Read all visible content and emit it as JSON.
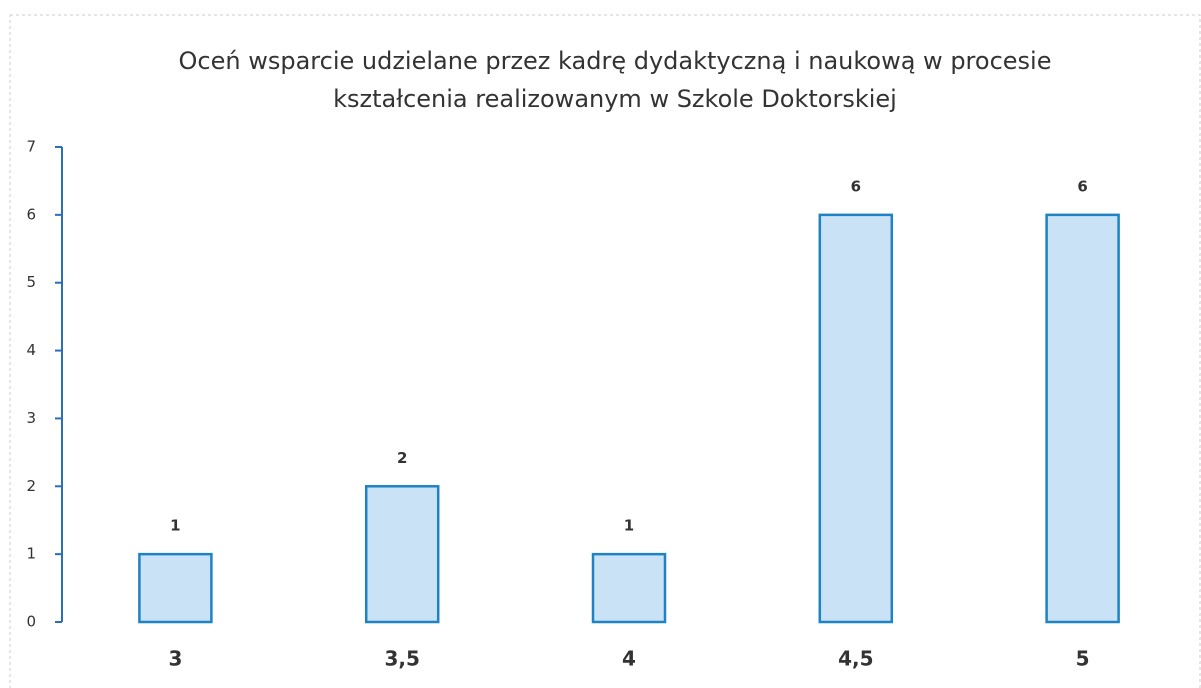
{
  "chart_data": {
    "type": "bar",
    "title": [
      "Oceń wsparcie udzielane przez kadrę dydaktyczną i naukową w procesie",
      "kształcenia realizowanym w Szkole Doktorskiej"
    ],
    "categories": [
      "3",
      "3,5",
      "4",
      "4,5",
      "5"
    ],
    "values": [
      1,
      2,
      1,
      6,
      6
    ],
    "color": "#c9e2f6",
    "ylim": [
      0,
      7
    ],
    "yticks": [
      0,
      1,
      2,
      3,
      4,
      5,
      6,
      7
    ],
    "grid": false
  }
}
